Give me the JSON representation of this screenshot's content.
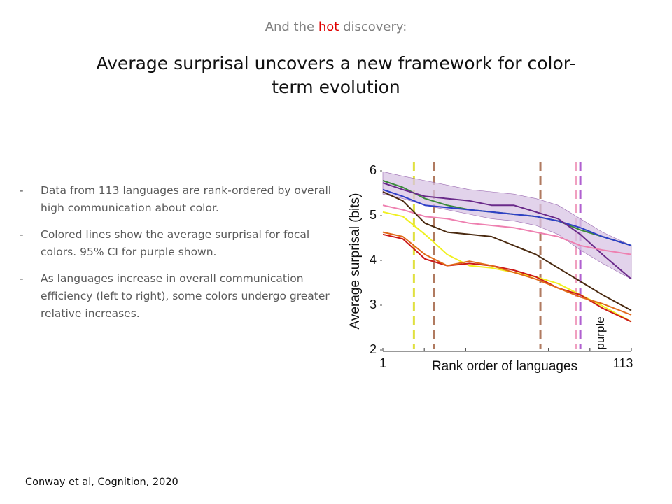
{
  "header": {
    "subtitle_pre": "And the",
    "subtitle_hot": "hot",
    "subtitle_post": "discovery:",
    "title": "Average surprisal uncovers a new framework for color-term evolution",
    "hot_color": "#e00000"
  },
  "bullets": [
    {
      "dash": "-",
      "text": "Data from 113 languages are rank-ordered by overall high communication about color."
    },
    {
      "dash": "-",
      "text": "Colored lines show the average surprisal for focal colors. 95% CI for purple shown."
    },
    {
      "dash": "-",
      "text": "As languages increase in overall communication efficiency (left to right), some colors undergo greater relative increases."
    }
  ],
  "citation": "Conway et al,  Cognition, 2020",
  "chart_data": {
    "type": "line",
    "xlabel": "Rank order of languages",
    "ylabel": "Average surprisal (bits)",
    "xlim": [
      1,
      113
    ],
    "ylim": [
      2,
      6
    ],
    "x_tick_labels": [
      "1",
      "113"
    ],
    "y_ticks": [
      2,
      3,
      4,
      5,
      6
    ],
    "vline_annotation": "purple",
    "vlines": [
      {
        "x": 15,
        "color": "#e0e040",
        "name": "yellow"
      },
      {
        "x": 24,
        "color": "#b07a60",
        "name": "brown"
      },
      {
        "x": 72,
        "color": "#b07a60",
        "name": "brown"
      },
      {
        "x": 88,
        "color": "#f0a0c0",
        "name": "pink"
      },
      {
        "x": 90,
        "color": "#b060d0",
        "name": "purple"
      }
    ],
    "ci_band": {
      "name": "purple 95% CI",
      "color": "#d8c4e4",
      "x": [
        1,
        10,
        20,
        30,
        40,
        50,
        60,
        70,
        80,
        90,
        100,
        113
      ],
      "upper": [
        5.95,
        5.85,
        5.75,
        5.65,
        5.55,
        5.5,
        5.45,
        5.35,
        5.2,
        4.9,
        4.6,
        4.3
      ],
      "lower": [
        5.45,
        5.35,
        5.2,
        5.1,
        5.0,
        4.9,
        4.85,
        4.75,
        4.55,
        4.2,
        3.9,
        3.55
      ]
    },
    "series": [
      {
        "name": "green",
        "color": "#3a8a3a",
        "x": [
          1,
          10,
          20,
          30,
          40,
          50,
          60,
          70,
          80,
          90,
          100,
          113
        ],
        "values": [
          5.75,
          5.6,
          5.35,
          5.2,
          5.1,
          5.05,
          5.0,
          4.95,
          4.85,
          4.65,
          4.5,
          4.3
        ]
      },
      {
        "name": "blue",
        "color": "#2e3fc8",
        "x": [
          1,
          10,
          20,
          30,
          40,
          50,
          60,
          70,
          80,
          90,
          100,
          113
        ],
        "values": [
          5.55,
          5.4,
          5.2,
          5.15,
          5.1,
          5.05,
          5.0,
          4.95,
          4.85,
          4.7,
          4.5,
          4.3
        ]
      },
      {
        "name": "purple",
        "color": "#6a2a8a",
        "x": [
          1,
          10,
          20,
          30,
          40,
          50,
          60,
          70,
          80,
          90,
          100,
          113
        ],
        "values": [
          5.7,
          5.55,
          5.4,
          5.35,
          5.3,
          5.2,
          5.2,
          5.05,
          4.9,
          4.55,
          4.1,
          3.55
        ]
      },
      {
        "name": "pink",
        "color": "#ee80b0",
        "x": [
          1,
          10,
          20,
          30,
          40,
          50,
          60,
          70,
          80,
          90,
          100,
          113
        ],
        "values": [
          5.2,
          5.1,
          4.95,
          4.9,
          4.8,
          4.75,
          4.7,
          4.6,
          4.5,
          4.3,
          4.2,
          4.1
        ]
      },
      {
        "name": "brown",
        "color": "#4a2a10",
        "x": [
          1,
          10,
          20,
          30,
          40,
          50,
          60,
          70,
          80,
          90,
          100,
          113
        ],
        "values": [
          5.5,
          5.3,
          4.8,
          4.6,
          4.55,
          4.5,
          4.3,
          4.1,
          3.8,
          3.5,
          3.2,
          2.85
        ]
      },
      {
        "name": "yellow",
        "color": "#f0f020",
        "x": [
          1,
          10,
          20,
          30,
          40,
          50,
          60,
          70,
          80,
          90,
          100,
          113
        ],
        "values": [
          5.05,
          4.95,
          4.55,
          4.1,
          3.85,
          3.8,
          3.7,
          3.6,
          3.45,
          3.2,
          2.95,
          2.6
        ]
      },
      {
        "name": "red",
        "color": "#cc1818",
        "x": [
          1,
          10,
          20,
          30,
          40,
          50,
          60,
          70,
          80,
          90,
          100,
          113
        ],
        "values": [
          4.55,
          4.45,
          4.0,
          3.85,
          3.9,
          3.85,
          3.75,
          3.6,
          3.35,
          3.2,
          2.9,
          2.6
        ]
      },
      {
        "name": "orange",
        "color": "#e06a18",
        "x": [
          1,
          10,
          20,
          30,
          40,
          50,
          60,
          70,
          80,
          90,
          100,
          113
        ],
        "values": [
          4.6,
          4.5,
          4.1,
          3.85,
          3.95,
          3.85,
          3.7,
          3.55,
          3.35,
          3.15,
          3.0,
          2.75
        ]
      }
    ]
  }
}
